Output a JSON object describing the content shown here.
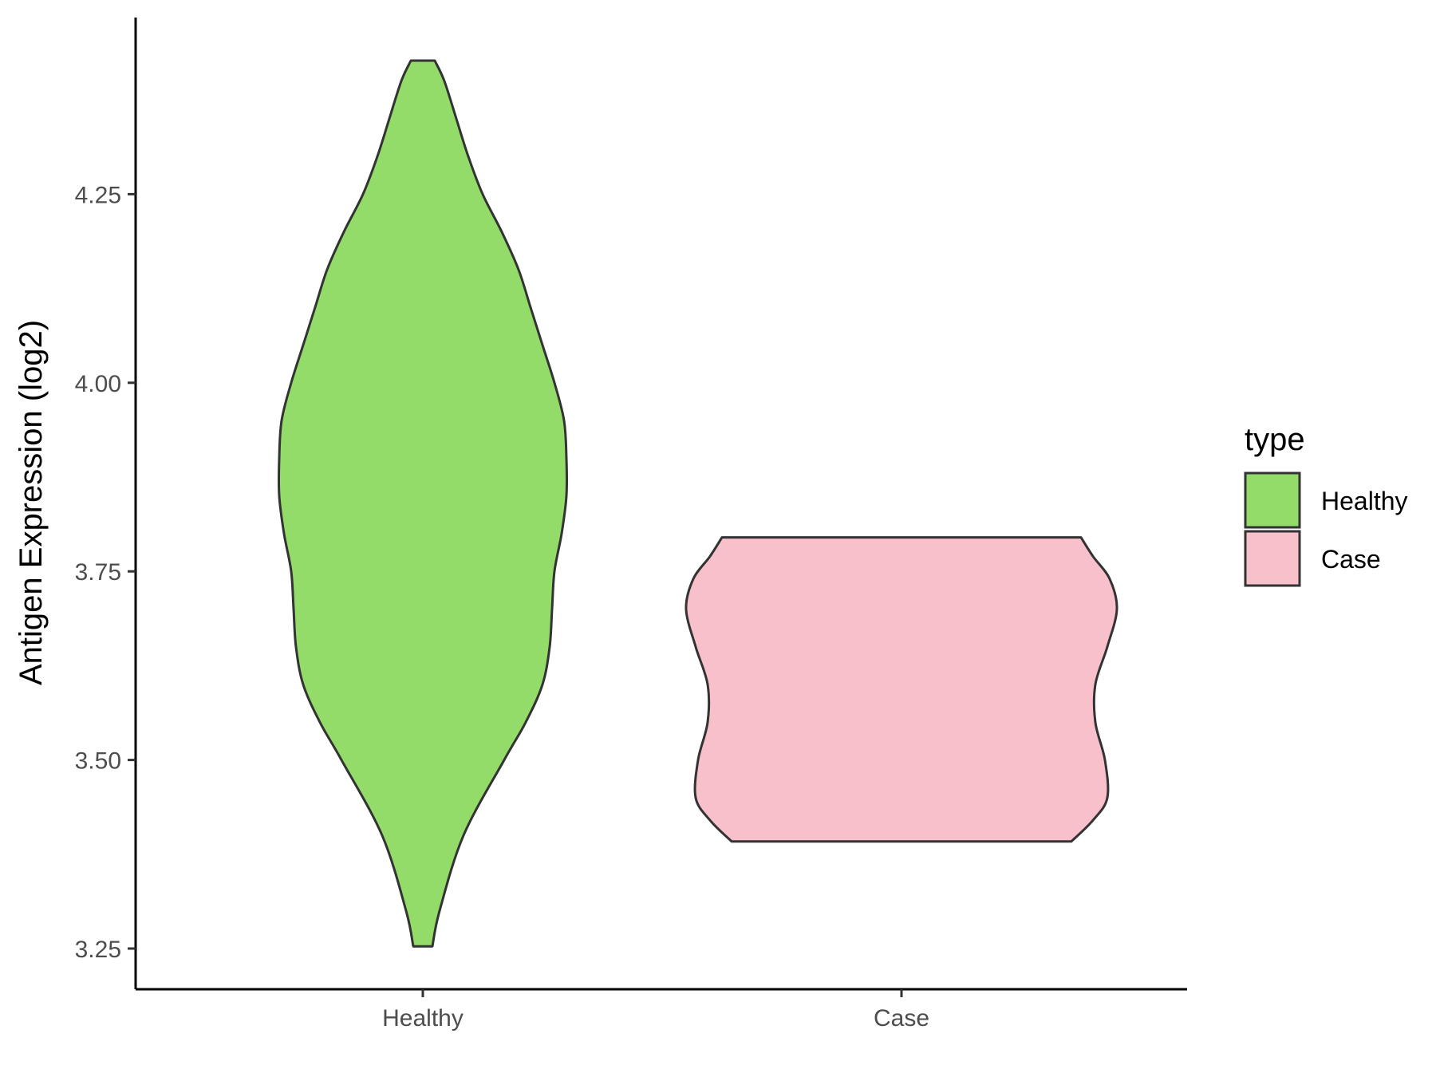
{
  "chart_data": {
    "type": "violin",
    "ylabel": "Antigen Expression (log2)",
    "xlabel": "",
    "categories": [
      "Healthy",
      "Case"
    ],
    "ylim": [
      3.2,
      4.47
    ],
    "yticks": [
      3.25,
      3.5,
      3.75,
      4.0,
      4.25
    ],
    "ytick_labels": [
      "3.25",
      "3.50",
      "3.75",
      "4.00",
      "4.25"
    ],
    "grid": false,
    "legend": {
      "title": "type",
      "position": "right",
      "entries": [
        {
          "label": "Healthy",
          "color": "#93dc6a"
        },
        {
          "label": "Case",
          "color": "#f7c0cb"
        }
      ]
    },
    "series": [
      {
        "name": "Healthy",
        "color": "#93dc6a",
        "min": 3.253,
        "max": 4.427,
        "density_profile": [
          [
            3.253,
            0.04
          ],
          [
            3.3,
            0.07
          ],
          [
            3.4,
            0.17
          ],
          [
            3.5,
            0.34
          ],
          [
            3.55,
            0.43
          ],
          [
            3.6,
            0.5
          ],
          [
            3.65,
            0.53
          ],
          [
            3.7,
            0.54
          ],
          [
            3.75,
            0.55
          ],
          [
            3.8,
            0.58
          ],
          [
            3.85,
            0.6
          ],
          [
            3.9,
            0.6
          ],
          [
            3.95,
            0.59
          ],
          [
            4.0,
            0.55
          ],
          [
            4.05,
            0.5
          ],
          [
            4.1,
            0.45
          ],
          [
            4.15,
            0.4
          ],
          [
            4.2,
            0.33
          ],
          [
            4.25,
            0.25
          ],
          [
            4.3,
            0.19
          ],
          [
            4.35,
            0.14
          ],
          [
            4.4,
            0.09
          ],
          [
            4.427,
            0.05
          ]
        ]
      },
      {
        "name": "Case",
        "color": "#f7c0cb",
        "min": 3.392,
        "max": 3.795,
        "density_profile": [
          [
            3.392,
            0.71
          ],
          [
            3.42,
            0.8
          ],
          [
            3.45,
            0.86
          ],
          [
            3.5,
            0.85
          ],
          [
            3.55,
            0.81
          ],
          [
            3.6,
            0.81
          ],
          [
            3.65,
            0.86
          ],
          [
            3.7,
            0.9
          ],
          [
            3.74,
            0.87
          ],
          [
            3.77,
            0.8
          ],
          [
            3.795,
            0.75
          ]
        ]
      }
    ],
    "outline_color": "#333333"
  }
}
